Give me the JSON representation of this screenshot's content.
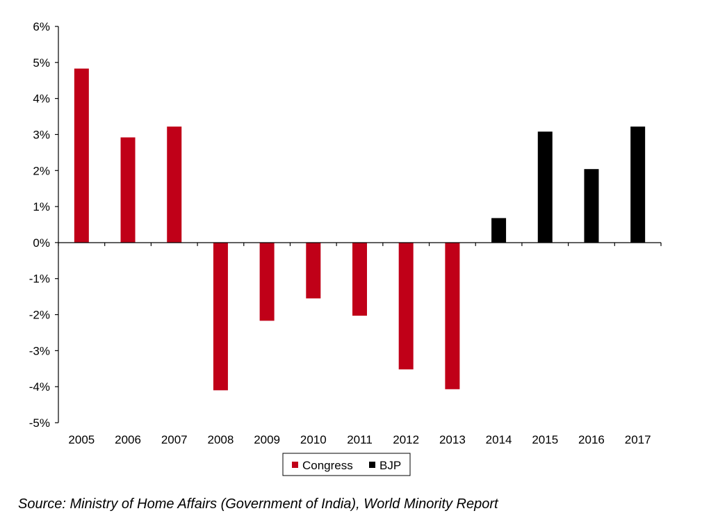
{
  "chart_data": {
    "type": "bar",
    "categories": [
      "2005",
      "2006",
      "2007",
      "2008",
      "2009",
      "2010",
      "2011",
      "2012",
      "2013",
      "2014",
      "2015",
      "2016",
      "2017"
    ],
    "series": [
      {
        "name": "Congress",
        "color": "#c00018",
        "values": [
          4.83,
          2.92,
          3.22,
          -4.1,
          -2.17,
          -1.55,
          -2.03,
          -3.52,
          -4.07,
          null,
          null,
          null,
          null
        ]
      },
      {
        "name": "BJP",
        "color": "#000000",
        "values": [
          null,
          null,
          null,
          null,
          null,
          null,
          null,
          null,
          null,
          0.68,
          3.08,
          2.04,
          3.22
        ]
      }
    ],
    "yticks": [
      "6%",
      "5%",
      "4%",
      "3%",
      "2%",
      "1%",
      "0%",
      "-1%",
      "-2%",
      "-3%",
      "-4%",
      "-5%"
    ],
    "ylim": [
      -5,
      6
    ],
    "title": "",
    "xlabel": "",
    "ylabel": "",
    "legend_position": "bottom-center"
  },
  "source_note": "Source: Ministry of Home Affairs (Government of India), World Minority Report"
}
